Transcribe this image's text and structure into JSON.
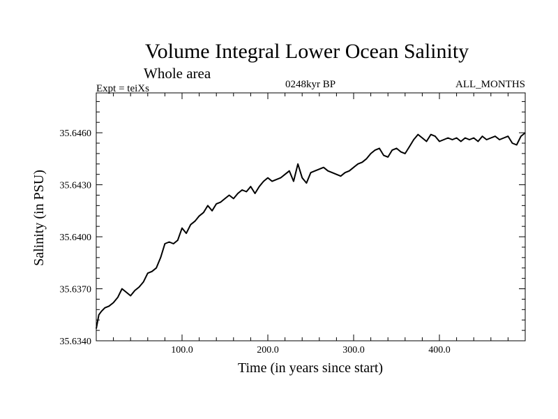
{
  "chart_data": {
    "type": "line",
    "title": "Volume Integral Lower Ocean Salinity",
    "subtitle": "Whole area",
    "annotations": {
      "left": "Expt = teiXs",
      "center": "0248kyr BP",
      "right": "ALL_MONTHS"
    },
    "xlabel": "Time (in years since start)",
    "ylabel": "Salinity (in PSU)",
    "xlim": [
      0,
      500
    ],
    "ylim": [
      35.634,
      35.6483
    ],
    "x_ticks": [
      100,
      200,
      300,
      400
    ],
    "x_tick_labels": [
      "100.0",
      "200.0",
      "300.0",
      "400.0"
    ],
    "y_ticks": [
      35.634,
      35.637,
      35.64,
      35.643,
      35.646
    ],
    "y_tick_labels": [
      "35.6340",
      "35.6370",
      "35.6400",
      "35.6430",
      "35.6460"
    ],
    "grid": false,
    "series": [
      {
        "x": [
          0,
          3,
          6,
          10,
          15,
          20,
          25,
          30,
          35,
          40,
          45,
          50,
          55,
          60,
          65,
          70,
          75,
          80,
          85,
          90,
          95,
          100,
          105,
          110,
          115,
          120,
          125,
          130,
          135,
          140,
          145,
          150,
          155,
          160,
          165,
          170,
          175,
          180,
          185,
          190,
          195,
          200,
          205,
          210,
          215,
          220,
          225,
          230,
          235,
          240,
          245,
          250,
          255,
          260,
          265,
          270,
          275,
          280,
          285,
          290,
          295,
          300,
          305,
          310,
          315,
          320,
          325,
          330,
          335,
          340,
          345,
          350,
          355,
          360,
          365,
          370,
          375,
          380,
          385,
          390,
          395,
          400,
          405,
          410,
          415,
          420,
          425,
          430,
          435,
          440,
          445,
          450,
          455,
          460,
          465,
          470,
          475,
          480,
          485,
          490,
          495,
          500
        ],
        "values": [
          35.6347,
          35.6355,
          35.6357,
          35.6359,
          35.636,
          35.6362,
          35.6365,
          35.637,
          35.6368,
          35.6366,
          35.6369,
          35.6371,
          35.6374,
          35.6379,
          35.638,
          35.6382,
          35.6388,
          35.6396,
          35.6397,
          35.6396,
          35.6398,
          35.6405,
          35.6402,
          35.6407,
          35.6409,
          35.6412,
          35.6414,
          35.6418,
          35.6415,
          35.6419,
          35.642,
          35.6422,
          35.6424,
          35.6422,
          35.6425,
          35.6427,
          35.6426,
          35.6429,
          35.6425,
          35.6429,
          35.6432,
          35.6434,
          35.6432,
          35.6433,
          35.6434,
          35.6436,
          35.6438,
          35.6432,
          35.6442,
          35.6434,
          35.6431,
          35.6437,
          35.6438,
          35.6439,
          35.644,
          35.6438,
          35.6437,
          35.6436,
          35.6435,
          35.6437,
          35.6438,
          35.644,
          35.6442,
          35.6443,
          35.6445,
          35.6448,
          35.645,
          35.6451,
          35.6447,
          35.6446,
          35.645,
          35.6451,
          35.6449,
          35.6448,
          35.6452,
          35.6456,
          35.6459,
          35.6457,
          35.6455,
          35.6459,
          35.6458,
          35.6455,
          35.6456,
          35.6457,
          35.6456,
          35.6457,
          35.6455,
          35.6457,
          35.6456,
          35.6457,
          35.6455,
          35.6458,
          35.6456,
          35.6457,
          35.6458,
          35.6456,
          35.6457,
          35.6458,
          35.6454,
          35.6453,
          35.6458,
          35.646
        ]
      }
    ]
  }
}
